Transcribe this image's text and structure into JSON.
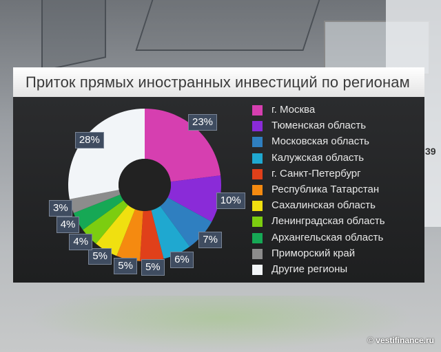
{
  "title": "Приток прямых иностранных инвестиций по регионам",
  "watermark": "© vestifinance.ru",
  "background_text": "39",
  "chart_data": {
    "type": "pie",
    "title": "Приток прямых иностранных инвестиций по регионам",
    "donut": true,
    "legend_placement": "right",
    "slices": [
      {
        "label": "г. Москва",
        "value": 23,
        "value_label": "23%",
        "color": "#d63fb0"
      },
      {
        "label": "Тюменская область",
        "value": 10,
        "value_label": "10%",
        "color": "#8a2bd8"
      },
      {
        "label": "Московская область",
        "value": 7,
        "value_label": "7%",
        "color": "#2f7fc0"
      },
      {
        "label": "Калужская область",
        "value": 6,
        "value_label": "6%",
        "color": "#1fa8d0"
      },
      {
        "label": "г. Санкт-Петербург",
        "value": 5,
        "value_label": "5%",
        "color": "#e0401a"
      },
      {
        "label": "Республика Татарстан",
        "value": 5,
        "value_label": "5%",
        "color": "#f58a10"
      },
      {
        "label": "Сахалинская область",
        "value": 5,
        "value_label": "5%",
        "color": "#f0e010"
      },
      {
        "label": "Ленинградская область",
        "value": 4,
        "value_label": "4%",
        "color": "#7ccd10"
      },
      {
        "label": "Архангельская область",
        "value": 4,
        "value_label": "4%",
        "color": "#16a855"
      },
      {
        "label": "Приморский край",
        "value": 3,
        "value_label": "3%",
        "color": "#8c8c8c"
      },
      {
        "label": "Другие регионы",
        "value": 28,
        "value_label": "28%",
        "color": "#f2f5f8"
      }
    ]
  }
}
